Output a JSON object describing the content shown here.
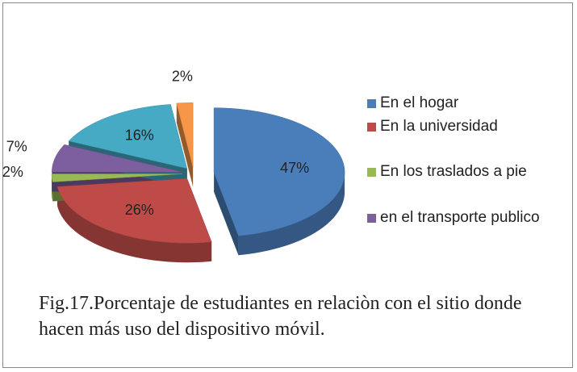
{
  "chart_data": {
    "type": "pie",
    "categories": [
      "En el hogar",
      "En la universidad",
      "En los traslados a pie",
      "en el transporte publico",
      null,
      null
    ],
    "values": [
      47,
      26,
      2,
      7,
      16,
      2
    ],
    "value_labels": [
      "47%",
      "26%",
      "2%",
      "7%",
      "16%",
      "2%"
    ],
    "colors": [
      "#4a7ebb",
      "#be4b48",
      "#98b954",
      "#7d5fa0",
      "#46aac5",
      "#f79646"
    ],
    "caption": "Fig.17.Porcentaje de estudiantes en relaciòn con el sitio donde hacen más uso del dispositivo móvil."
  }
}
